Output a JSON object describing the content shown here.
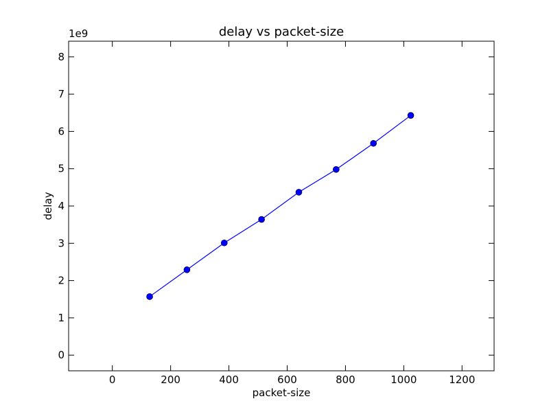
{
  "chart_data": {
    "type": "line",
    "title": "delay vs packet-size",
    "xlabel": "packet-size",
    "ylabel": "delay",
    "y_offset_label": "1e9",
    "xlim": [
      -150,
      1310
    ],
    "ylim": [
      -0.42,
      8.42
    ],
    "x_ticks": [
      0,
      200,
      400,
      600,
      800,
      1000,
      1200
    ],
    "y_ticks": [
      0,
      1,
      2,
      3,
      4,
      5,
      6,
      7,
      8
    ],
    "grid": false,
    "series": [
      {
        "x": [
          128,
          256,
          384,
          512,
          640,
          768,
          896,
          1024
        ],
        "y": [
          1.57,
          2.29,
          3.01,
          3.64,
          4.37,
          4.98,
          5.68,
          6.43
        ],
        "color": "#0000ff",
        "marker": "circle"
      }
    ]
  }
}
